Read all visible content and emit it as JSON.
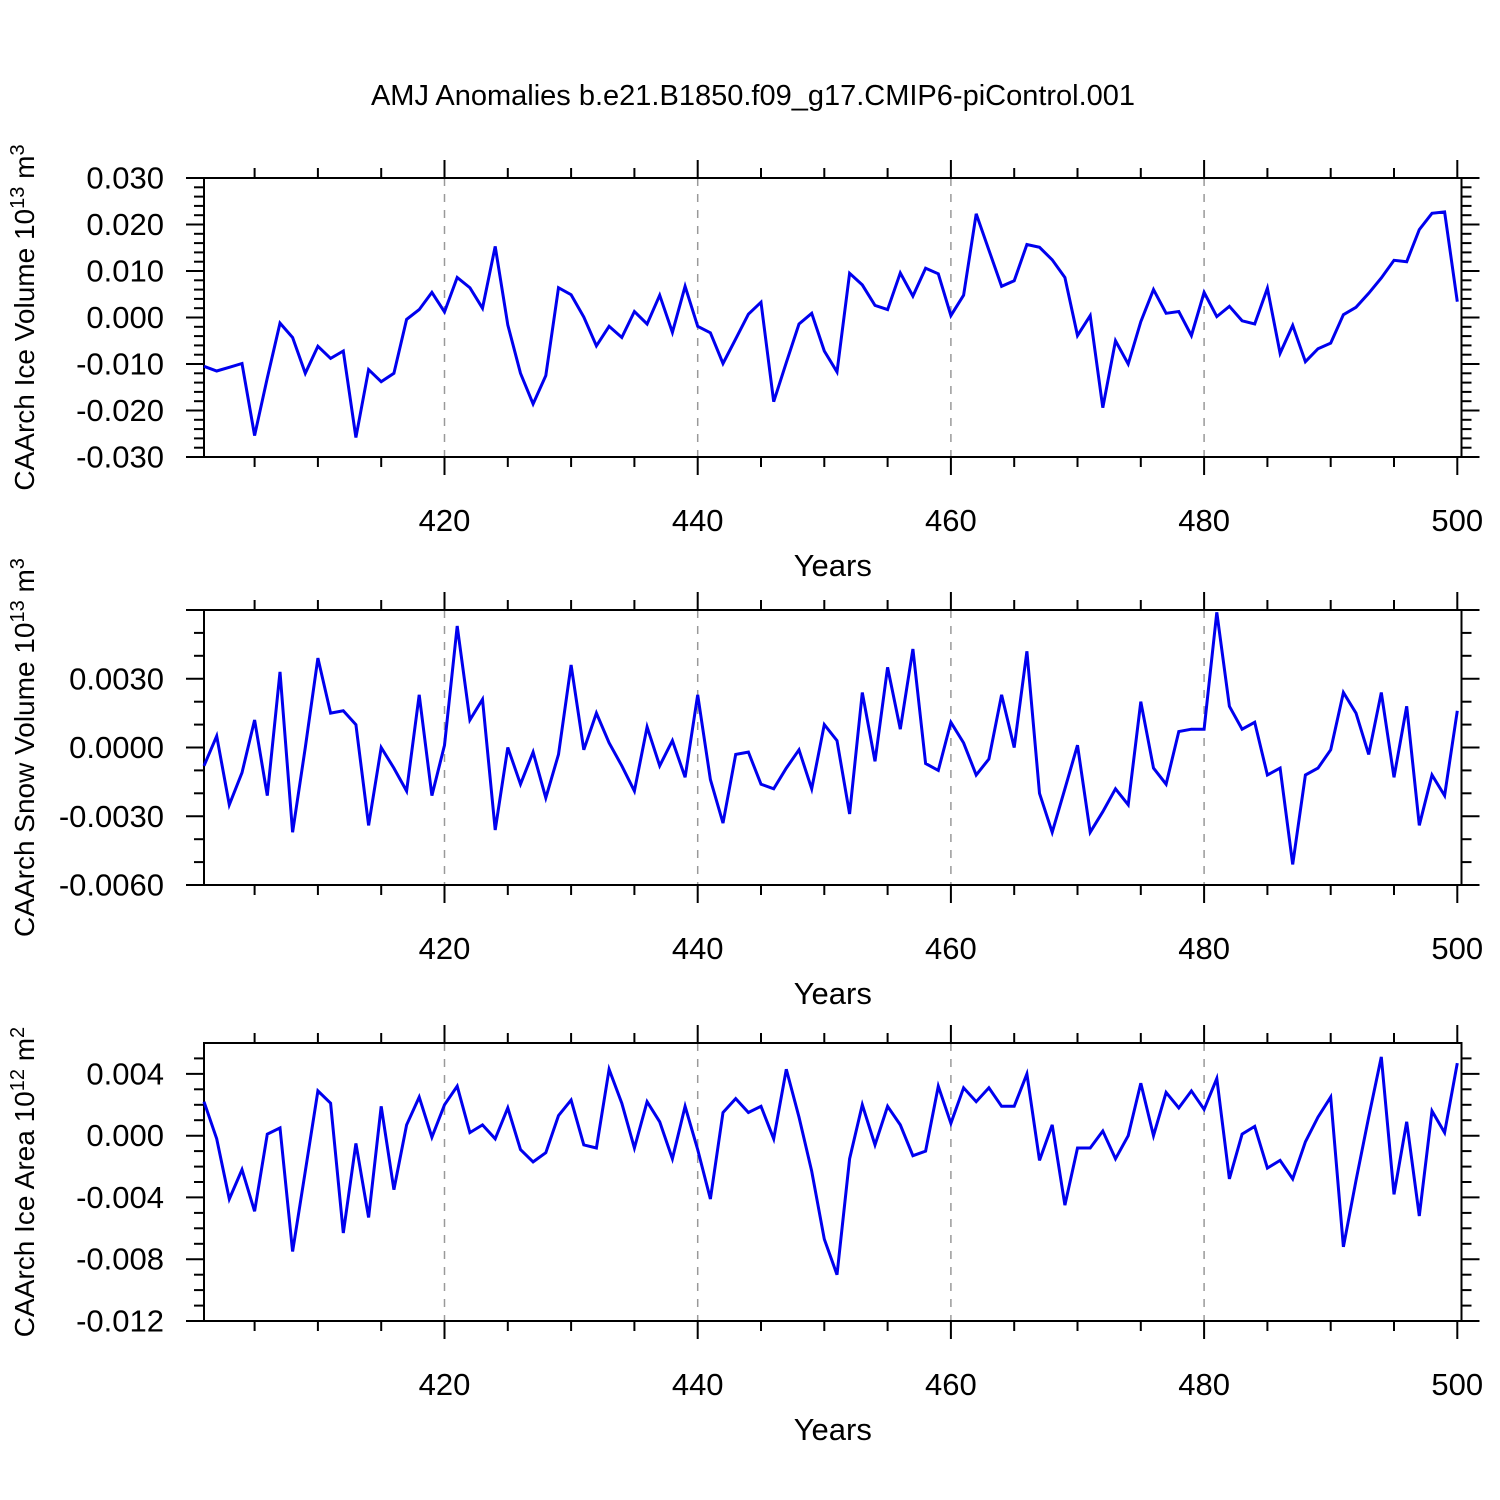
{
  "title": "AMJ Anomalies b.e21.B1850.f09_g17.CMIP6-piControl.001",
  "colors": {
    "line": "#0000EE",
    "grid": "#999999",
    "axis": "#000000",
    "text": "#000000",
    "background": "#FFFFFF"
  },
  "chart_data": {
    "type": "line",
    "title": "AMJ Anomalies b.e21.B1850.f09_g17.CMIP6-piControl.001",
    "xlabel": "Years",
    "x_ticks": [
      420,
      440,
      460,
      480,
      500
    ],
    "x_tick_labels": [
      "420",
      "440",
      "460",
      "480",
      "500"
    ],
    "x_minor_step": 5,
    "x_gridlines": [
      420,
      440,
      460,
      480
    ],
    "xlim": [
      401,
      500.3
    ],
    "legend": "none",
    "years": [
      401,
      402,
      403,
      404,
      405,
      406,
      407,
      408,
      409,
      410,
      411,
      412,
      413,
      414,
      415,
      416,
      417,
      418,
      419,
      420,
      421,
      422,
      423,
      424,
      425,
      426,
      427,
      428,
      429,
      430,
      431,
      432,
      433,
      434,
      435,
      436,
      437,
      438,
      439,
      440,
      441,
      442,
      443,
      444,
      445,
      446,
      447,
      448,
      449,
      450,
      451,
      452,
      453,
      454,
      455,
      456,
      457,
      458,
      459,
      460,
      461,
      462,
      463,
      464,
      465,
      466,
      467,
      468,
      469,
      470,
      471,
      472,
      473,
      474,
      475,
      476,
      477,
      478,
      479,
      480,
      481,
      482,
      483,
      484,
      485,
      486,
      487,
      488,
      489,
      490,
      491,
      492,
      493,
      494,
      495,
      496,
      497,
      498,
      499,
      500
    ],
    "panels": [
      {
        "name": "ice-volume",
        "ylabel_text": "CAArch Ice Volume 10^13 m^3",
        "ylabel_parts": [
          {
            "text": "CAArch Ice Volume 10",
            "sup": false
          },
          {
            "text": "13",
            "sup": true
          },
          {
            "text": " m",
            "sup": false
          },
          {
            "text": "3",
            "sup": true
          }
        ],
        "ylim": [
          -0.03,
          0.03
        ],
        "y_major_step": 0.01,
        "y_minor_step": 0.002,
        "y_ticks": [
          {
            "v": 0.03,
            "label": "0.030"
          },
          {
            "v": 0.02,
            "label": "0.020"
          },
          {
            "v": 0.01,
            "label": "0.010"
          },
          {
            "v": 0.0,
            "label": "0.000"
          },
          {
            "v": -0.01,
            "label": "-0.010"
          },
          {
            "v": -0.02,
            "label": "-0.020"
          },
          {
            "v": -0.03,
            "label": "-0.030"
          }
        ],
        "values": [
          -0.0105,
          -0.0115,
          -0.0107,
          -0.0099,
          -0.0254,
          -0.013,
          -0.0012,
          -0.0043,
          -0.012,
          -0.0062,
          -0.0088,
          -0.0072,
          -0.0258,
          -0.0112,
          -0.0138,
          -0.012,
          -0.0004,
          0.0017,
          0.0054,
          0.0012,
          0.0086,
          0.0064,
          0.002,
          0.0153,
          -0.0016,
          -0.012,
          -0.0186,
          -0.0125,
          0.0064,
          0.0049,
          0.0001,
          -0.0061,
          -0.0019,
          -0.0043,
          0.0013,
          -0.0014,
          0.0048,
          -0.0032,
          0.0067,
          -0.0019,
          -0.0033,
          -0.0099,
          -0.0046,
          0.0007,
          0.0033,
          -0.0181,
          -0.0097,
          -0.0014,
          0.0009,
          -0.0072,
          -0.0117,
          0.0095,
          0.007,
          0.0026,
          0.0017,
          0.0096,
          0.0046,
          0.0106,
          0.0094,
          0.0004,
          0.0048,
          0.0223,
          0.0145,
          0.0067,
          0.0079,
          0.0157,
          0.0151,
          0.0124,
          0.0086,
          -0.0039,
          0.0004,
          -0.0194,
          -0.005,
          -0.01,
          -0.0009,
          0.006,
          0.0009,
          0.0013,
          -0.0039,
          0.0054,
          0.0002,
          0.0024,
          -0.0007,
          -0.0014,
          0.0063,
          -0.0077,
          -0.0017,
          -0.0095,
          -0.0067,
          -0.0055,
          0.0006,
          0.0022,
          0.0052,
          0.0085,
          0.0123,
          0.012,
          0.0189,
          0.0224,
          0.0227,
          0.0034
        ]
      },
      {
        "name": "snow-volume",
        "ylabel_text": "CAArch Snow Volume 10^13 m^3",
        "ylabel_parts": [
          {
            "text": "CAArch Snow Volume 10",
            "sup": false
          },
          {
            "text": "13",
            "sup": true
          },
          {
            "text": " m",
            "sup": false
          },
          {
            "text": "3",
            "sup": true
          }
        ],
        "ylim": [
          -0.006,
          0.006
        ],
        "y_major_step": 0.003,
        "y_minor_step": 0.001,
        "y_ticks": [
          {
            "v": 0.006,
            "label": ""
          },
          {
            "v": 0.003,
            "label": "0.0030"
          },
          {
            "v": 0.0,
            "label": "0.0000"
          },
          {
            "v": -0.003,
            "label": "-0.0030"
          },
          {
            "v": -0.006,
            "label": "-0.0060"
          }
        ],
        "values": [
          -0.0008,
          0.0005,
          -0.0025,
          -0.0011,
          0.0012,
          -0.0021,
          0.0033,
          -0.0037,
          0.0,
          0.0039,
          0.0015,
          0.0016,
          0.001,
          -0.0034,
          0.0,
          -0.0009,
          -0.0019,
          0.0023,
          -0.0021,
          0.0001,
          0.0053,
          0.0012,
          0.0021,
          -0.0036,
          0.0,
          -0.0016,
          -0.0002,
          -0.0022,
          -0.0003,
          0.0036,
          -0.0001,
          0.0015,
          0.0002,
          -0.0008,
          -0.0019,
          0.0009,
          -0.0008,
          0.0003,
          -0.0013,
          0.0023,
          -0.0014,
          -0.0033,
          -0.0003,
          -0.0002,
          -0.0016,
          -0.0018,
          -0.0009,
          -0.0001,
          -0.0018,
          0.001,
          0.0003,
          -0.0029,
          0.0024,
          -0.0006,
          0.0035,
          0.0008,
          0.0043,
          -0.0007,
          -0.001,
          0.0011,
          0.0002,
          -0.0012,
          -0.0005,
          0.0023,
          0.0,
          0.0042,
          -0.002,
          -0.0037,
          -0.0018,
          0.0001,
          -0.0037,
          -0.0028,
          -0.0018,
          -0.0025,
          0.002,
          -0.0009,
          -0.0016,
          0.0007,
          0.0008,
          0.0008,
          0.0059,
          0.0018,
          0.0008,
          0.0011,
          -0.0012,
          -0.0009,
          -0.0051,
          -0.0012,
          -0.0009,
          -0.0001,
          0.0024,
          0.0015,
          -0.0003,
          0.0024,
          -0.0013,
          0.0018,
          -0.0034,
          -0.0012,
          -0.0021,
          0.0016
        ]
      },
      {
        "name": "ice-area",
        "ylabel_text": "CAArch Ice Area 10^12 m^2",
        "ylabel_parts": [
          {
            "text": "CAArch Ice Area 10",
            "sup": false
          },
          {
            "text": "12",
            "sup": true
          },
          {
            "text": " m",
            "sup": false
          },
          {
            "text": "2",
            "sup": true
          }
        ],
        "ylim": [
          -0.012,
          0.006
        ],
        "y_major_step": 0.004,
        "y_minor_step": 0.001,
        "y_ticks": [
          {
            "v": 0.004,
            "label": "0.004"
          },
          {
            "v": 0.0,
            "label": "0.000"
          },
          {
            "v": -0.004,
            "label": "-0.004"
          },
          {
            "v": -0.008,
            "label": "-0.008"
          },
          {
            "v": -0.012,
            "label": "-0.012"
          }
        ],
        "values": [
          0.0022,
          -0.0002,
          -0.0041,
          -0.0022,
          -0.0049,
          0.0001,
          0.0005,
          -0.0075,
          -0.0023,
          0.0029,
          0.0021,
          -0.0063,
          -0.0005,
          -0.0053,
          0.0019,
          -0.0035,
          0.0007,
          0.0025,
          -0.0001,
          0.002,
          0.0032,
          0.0002,
          0.0007,
          -0.0002,
          0.0018,
          -0.0009,
          -0.0017,
          -0.0011,
          0.0013,
          0.0023,
          -0.0006,
          -0.0008,
          0.0043,
          0.0021,
          -0.0008,
          0.0022,
          0.0009,
          -0.0015,
          0.0019,
          -0.0009,
          -0.0041,
          0.0015,
          0.0024,
          0.0015,
          0.0019,
          -0.0002,
          0.0043,
          0.0012,
          -0.0023,
          -0.0067,
          -0.009,
          -0.0015,
          0.002,
          -0.0006,
          0.0019,
          0.0007,
          -0.0013,
          -0.001,
          0.0032,
          0.0008,
          0.0031,
          0.0022,
          0.0031,
          0.0019,
          0.0019,
          0.004,
          -0.0016,
          0.0007,
          -0.0045,
          -0.0008,
          -0.0008,
          0.0003,
          -0.0015,
          0.0,
          0.0034,
          0.0,
          0.0028,
          0.0018,
          0.0029,
          0.0017,
          0.0037,
          -0.0028,
          0.0001,
          0.0006,
          -0.0021,
          -0.0016,
          -0.0028,
          -0.0004,
          0.0012,
          0.0025,
          -0.0072,
          -0.0029,
          0.0012,
          0.0051,
          -0.0038,
          0.0009,
          -0.0052,
          0.0016,
          0.0002,
          0.0047
        ]
      }
    ]
  }
}
